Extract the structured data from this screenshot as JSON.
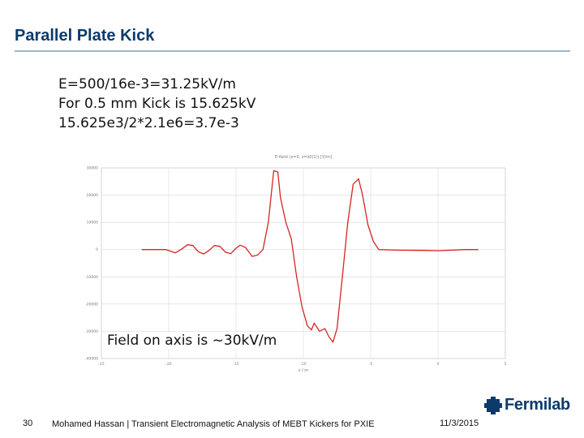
{
  "slide": {
    "title": "Parallel Plate Kick",
    "bullets": [
      "E=500/16e-3=31.25kV/m",
      "For 0.5 mm Kick is 15.625kV",
      "15.625e3/2*2.1e6=3.7e-3"
    ],
    "caption": "Field on axis is ~30kV/m"
  },
  "footer": {
    "page_number": "30",
    "text": "Mohamed Hassan | Transient Electromagnetic Analysis of MEBT Kickers for PXIE",
    "date": "11/3/2015",
    "logo_text": "Fermilab"
  },
  "colors": {
    "title": "#0b3a6b",
    "rule": "#9fb6cf",
    "trace": "#d62424",
    "grid": "#d9d9d9"
  },
  "chart_data": {
    "type": "line",
    "title": "E-field (x=0, z=z0(1)) [V/m]",
    "xlabel": "z / m",
    "ylabel": "",
    "xlim": [
      -25,
      5
    ],
    "ylim": [
      -40000,
      30000
    ],
    "x_ticks": [
      "-25",
      "-20",
      "-15",
      "-10",
      "-5",
      "0",
      "5"
    ],
    "y_ticks": [
      "30000",
      "20000",
      "10000",
      "0",
      "-10000",
      "-20000",
      "-30000",
      "-40000"
    ],
    "grid": true,
    "series": [
      {
        "values": [
          [
            -22,
            0
          ],
          [
            -21,
            0
          ],
          [
            -20.2,
            0
          ],
          [
            -19.5,
            -1200
          ],
          [
            -19,
            300
          ],
          [
            -18.6,
            1800
          ],
          [
            -18.2,
            1500
          ],
          [
            -17.8,
            -800
          ],
          [
            -17.4,
            -1600
          ],
          [
            -17,
            -300
          ],
          [
            -16.6,
            1500
          ],
          [
            -16.2,
            1200
          ],
          [
            -15.8,
            -900
          ],
          [
            -15.4,
            -1500
          ],
          [
            -15,
            500
          ],
          [
            -14.7,
            1600
          ],
          [
            -14.3,
            800
          ],
          [
            -13.8,
            -2500
          ],
          [
            -13.4,
            -2000
          ],
          [
            -13,
            0
          ],
          [
            -12.6,
            10000
          ],
          [
            -12.2,
            29000
          ],
          [
            -11.9,
            28500
          ],
          [
            -11.7,
            19000
          ],
          [
            -11.3,
            10000
          ],
          [
            -10.9,
            4000
          ],
          [
            -10.5,
            -10000
          ],
          [
            -10.1,
            -21000
          ],
          [
            -9.7,
            -28000
          ],
          [
            -9.4,
            -29500
          ],
          [
            -9.2,
            -27000
          ],
          [
            -8.8,
            -30000
          ],
          [
            -8.4,
            -29000
          ],
          [
            -8.1,
            -32000
          ],
          [
            -7.8,
            -34000
          ],
          [
            -7.5,
            -29000
          ],
          [
            -7.1,
            -10000
          ],
          [
            -6.7,
            10000
          ],
          [
            -6.3,
            24000
          ],
          [
            -5.9,
            26000
          ],
          [
            -5.6,
            20000
          ],
          [
            -5.2,
            9000
          ],
          [
            -4.8,
            3000
          ],
          [
            -4.4,
            0
          ],
          [
            -3,
            -200
          ],
          [
            -1,
            -300
          ],
          [
            0,
            -400
          ],
          [
            2,
            0
          ],
          [
            3,
            0
          ]
        ]
      }
    ]
  }
}
